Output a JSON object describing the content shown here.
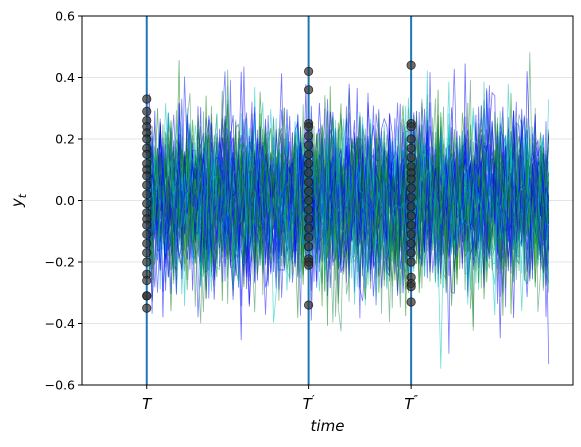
{
  "chart_data": {
    "type": "line",
    "title": "",
    "xlabel": "time",
    "ylabel": "y_t",
    "ylim": [
      -0.6,
      0.6
    ],
    "yticks": [
      -0.6,
      -0.4,
      -0.2,
      0.0,
      0.2,
      0.4,
      0.6
    ],
    "ytick_labels": [
      "−0.6",
      "−0.4",
      "−0.2",
      "0.0",
      "0.2",
      "0.4",
      "0.6"
    ],
    "grid": "horizontal",
    "xlim": [
      -24,
      158
    ],
    "x_range": [
      0,
      149
    ],
    "series_count": 60,
    "series_std": 0.13,
    "line_colors": [
      "#0000ff",
      "#008000",
      "#00c0c0",
      "#1a1aff",
      "#2e8b57"
    ],
    "event_lines": [
      {
        "x": 0,
        "label": "T",
        "prime": ""
      },
      {
        "x": 60,
        "label": "T",
        "prime": "′"
      },
      {
        "x": 98,
        "label": "T",
        "prime": "″"
      }
    ],
    "event_color": "#1f77b4",
    "marker_color": "#333333",
    "markers": [
      {
        "x": 0,
        "y": [
          0.33,
          0.29,
          0.26,
          0.24,
          0.22,
          0.2,
          0.17,
          0.15,
          0.12,
          0.1,
          0.08,
          0.05,
          0.02,
          -0.01,
          -0.04,
          -0.06,
          -0.08,
          -0.11,
          -0.14,
          -0.17,
          -0.2,
          -0.24,
          -0.26,
          -0.31,
          -0.31,
          -0.35
        ]
      },
      {
        "x": 60,
        "y": [
          0.42,
          0.36,
          0.25,
          0.24,
          0.21,
          0.18,
          0.15,
          0.12,
          0.09,
          0.06,
          0.03,
          0.0,
          -0.03,
          -0.06,
          -0.09,
          -0.12,
          -0.15,
          -0.19,
          -0.2,
          -0.21,
          -0.34
        ]
      },
      {
        "x": 98,
        "y": [
          0.44,
          0.25,
          0.24,
          0.2,
          0.17,
          0.14,
          0.11,
          0.09,
          0.07,
          0.04,
          0.01,
          -0.02,
          -0.05,
          -0.08,
          -0.11,
          -0.14,
          -0.17,
          -0.2,
          -0.25,
          -0.27,
          -0.28,
          -0.33
        ]
      }
    ]
  }
}
